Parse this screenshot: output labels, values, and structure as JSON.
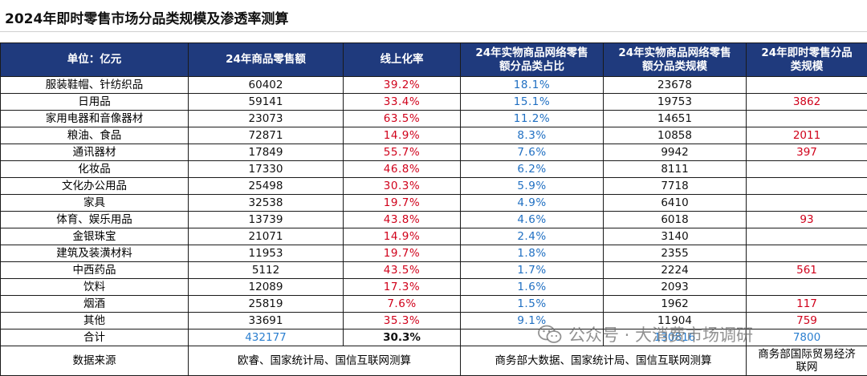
{
  "title": "2024年即时零售市场分品类规模及渗透率测算",
  "header": {
    "unit": "单位：亿元",
    "col_retail": "24年商品零售额",
    "col_online_rate": "线上化率",
    "col_share_line1": "24年实物商品网络零售",
    "col_share_line2": "额分品类占比",
    "col_scale_line1": "24年实物商品网络零售",
    "col_scale_line2": "额分品类规模",
    "col_instant_line1": "24年即时零售分品",
    "col_instant_line2": "类规模"
  },
  "rows": [
    {
      "category": "服装鞋帽、针纺织品",
      "retail": "60402",
      "online_rate": "39.2%",
      "share": "18.1%",
      "scale": "23678",
      "instant": ""
    },
    {
      "category": "日用品",
      "retail": "59141",
      "online_rate": "33.4%",
      "share": "15.1%",
      "scale": "19753",
      "instant": "3862"
    },
    {
      "category": "家用电器和音像器材",
      "retail": "23073",
      "online_rate": "63.5%",
      "share": "11.2%",
      "scale": "14651",
      "instant": ""
    },
    {
      "category": "粮油、食品",
      "retail": "72871",
      "online_rate": "14.9%",
      "share": "8.3%",
      "scale": "10858",
      "instant": "2011"
    },
    {
      "category": "通讯器材",
      "retail": "17849",
      "online_rate": "55.7%",
      "share": "7.6%",
      "scale": "9942",
      "instant": "397"
    },
    {
      "category": "化妆品",
      "retail": "17330",
      "online_rate": "46.8%",
      "share": "6.2%",
      "scale": "8111",
      "instant": ""
    },
    {
      "category": "文化办公用品",
      "retail": "25498",
      "online_rate": "30.3%",
      "share": "5.9%",
      "scale": "7718",
      "instant": ""
    },
    {
      "category": "家具",
      "retail": "32538",
      "online_rate": "19.7%",
      "share": "4.9%",
      "scale": "6410",
      "instant": ""
    },
    {
      "category": "体育、娱乐用品",
      "retail": "13739",
      "online_rate": "43.8%",
      "share": "4.6%",
      "scale": "6018",
      "instant": "93"
    },
    {
      "category": "金银珠宝",
      "retail": "21071",
      "online_rate": "14.9%",
      "share": "2.4%",
      "scale": "3140",
      "instant": ""
    },
    {
      "category": "建筑及装潢材料",
      "retail": "11953",
      "online_rate": "19.7%",
      "share": "1.8%",
      "scale": "2355",
      "instant": ""
    },
    {
      "category": "中西药品",
      "retail": "5112",
      "online_rate": "43.5%",
      "share": "1.7%",
      "scale": "2224",
      "instant": "561"
    },
    {
      "category": "饮料",
      "retail": "12089",
      "online_rate": "17.3%",
      "share": "1.6%",
      "scale": "2093",
      "instant": ""
    },
    {
      "category": "烟酒",
      "retail": "25819",
      "online_rate": "7.6%",
      "share": "1.5%",
      "scale": "1962",
      "instant": "117"
    },
    {
      "category": "其他",
      "retail": "33691",
      "online_rate": "35.3%",
      "share": "9.1%",
      "scale": "11904",
      "instant": "759"
    }
  ],
  "total": {
    "label": "合计",
    "retail": "432177",
    "online_rate": "30.3%",
    "share": "",
    "scale": "130816",
    "instant": "7800"
  },
  "source": {
    "label": "数据来源",
    "src1": "欧睿、国家统计局、国信互联网测算",
    "src2": "商务部大数据、国家统计局、国信互联网测算",
    "src3_line1": "商务部国际贸易经济",
    "src3_line2": "联网"
  },
  "watermark": {
    "text": "公众号 · 大消费市场调研",
    "icon": "wechat-icon"
  },
  "colors": {
    "header_bg": "#1f3a7d",
    "red": "#d0021b",
    "blue": "#1f6fc2"
  },
  "chart_data": {
    "type": "table",
    "title": "2024年即时零售市场分品类规模及渗透率测算",
    "columns": [
      "单位：亿元",
      "24年商品零售额",
      "线上化率",
      "24年实物商品网络零售额分品类占比",
      "24年实物商品网络零售额分品类规模",
      "24年即时零售分品类规模"
    ],
    "rows": [
      [
        "服装鞋帽、针纺织品",
        60402,
        "39.2%",
        "18.1%",
        23678,
        null
      ],
      [
        "日用品",
        59141,
        "33.4%",
        "15.1%",
        19753,
        3862
      ],
      [
        "家用电器和音像器材",
        23073,
        "63.5%",
        "11.2%",
        14651,
        null
      ],
      [
        "粮油、食品",
        72871,
        "14.9%",
        "8.3%",
        10858,
        2011
      ],
      [
        "通讯器材",
        17849,
        "55.7%",
        "7.6%",
        9942,
        397
      ],
      [
        "化妆品",
        17330,
        "46.8%",
        "6.2%",
        8111,
        null
      ],
      [
        "文化办公用品",
        25498,
        "30.3%",
        "5.9%",
        7718,
        null
      ],
      [
        "家具",
        32538,
        "19.7%",
        "4.9%",
        6410,
        null
      ],
      [
        "体育、娱乐用品",
        13739,
        "43.8%",
        "4.6%",
        6018,
        93
      ],
      [
        "金银珠宝",
        21071,
        "14.9%",
        "2.4%",
        3140,
        null
      ],
      [
        "建筑及装潢材料",
        11953,
        "19.7%",
        "1.8%",
        2355,
        null
      ],
      [
        "中西药品",
        5112,
        "43.5%",
        "1.7%",
        2224,
        561
      ],
      [
        "饮料",
        12089,
        "17.3%",
        "1.6%",
        2093,
        null
      ],
      [
        "烟酒",
        25819,
        "7.6%",
        "1.5%",
        1962,
        117
      ],
      [
        "其他",
        33691,
        "35.3%",
        "9.1%",
        11904,
        759
      ],
      [
        "合计",
        432177,
        "30.3%",
        null,
        130816,
        7800
      ]
    ]
  }
}
